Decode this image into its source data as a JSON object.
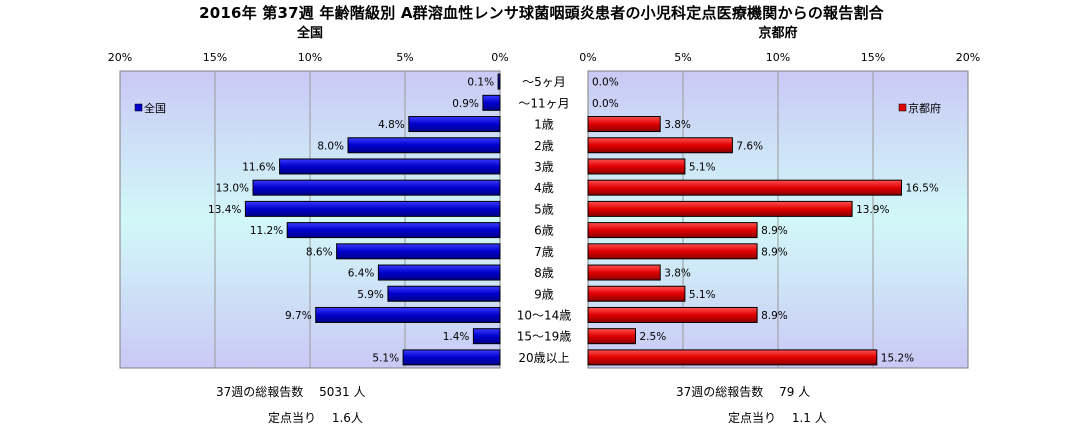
{
  "title": "2016年 第37週 年齢階級別 A群溶血性レンサ球菌咽頭炎患者の小児科定点医療機関からの報告割合",
  "colors": {
    "national_bar": "#0000cc",
    "kyoto_bar": "#e00000",
    "gradient_edge": "#c9c9f5",
    "gradient_center": "#d2f8f8",
    "gridline": "#9a9a9a"
  },
  "chart_data": [
    {
      "type": "bar",
      "orientation": "horizontal",
      "direction": "leftward",
      "title": "全国",
      "legend": {
        "label": "全国",
        "placement": "top-left"
      },
      "xlim": [
        0,
        20
      ],
      "ticks": [
        "20%",
        "15%",
        "10%",
        "5%",
        "0%"
      ],
      "tick_values": [
        20,
        15,
        10,
        5,
        0
      ],
      "grid": true,
      "categories": [
        "～5ヶ月",
        "～11ヶ月",
        "1歳",
        "2歳",
        "3歳",
        "4歳",
        "5歳",
        "6歳",
        "7歳",
        "8歳",
        "9歳",
        "10～14歳",
        "15～19歳",
        "20歳以上"
      ],
      "values": [
        0.1,
        0.9,
        4.8,
        8.0,
        11.6,
        13.0,
        13.4,
        11.2,
        8.6,
        6.4,
        5.9,
        9.7,
        1.4,
        5.1
      ],
      "value_labels": [
        "0.1%",
        "0.9%",
        "4.8%",
        "8.0%",
        "11.6%",
        "13.0%",
        "13.4%",
        "11.2%",
        "8.6%",
        "6.4%",
        "5.9%",
        "9.7%",
        "1.4%",
        "5.1%"
      ]
    },
    {
      "type": "bar",
      "orientation": "horizontal",
      "direction": "rightward",
      "title": "京都府",
      "legend": {
        "label": "京都府",
        "placement": "top-right"
      },
      "xlim": [
        0,
        20
      ],
      "ticks": [
        "0%",
        "5%",
        "10%",
        "15%",
        "20%"
      ],
      "tick_values": [
        0,
        5,
        10,
        15,
        20
      ],
      "grid": true,
      "categories": [
        "～5ヶ月",
        "～11ヶ月",
        "1歳",
        "2歳",
        "3歳",
        "4歳",
        "5歳",
        "6歳",
        "7歳",
        "8歳",
        "9歳",
        "10～14歳",
        "15～19歳",
        "20歳以上"
      ],
      "values": [
        0.0,
        0.0,
        3.8,
        7.6,
        5.1,
        16.5,
        13.9,
        8.9,
        8.9,
        3.8,
        5.1,
        8.9,
        2.5,
        15.2
      ],
      "value_labels": [
        "0.0%",
        "0.0%",
        "3.8%",
        "7.6%",
        "5.1%",
        "16.5%",
        "13.9%",
        "8.9%",
        "8.9%",
        "3.8%",
        "5.1%",
        "8.9%",
        "2.5%",
        "15.2%"
      ]
    }
  ],
  "summary": {
    "national_total": "37週の総報告数　 5031 人",
    "national_per_site": "定点当り　 1.6人",
    "kyoto_total": "37週の総報告数　 79 人",
    "kyoto_per_site": "定点当り　 1.1 人"
  }
}
